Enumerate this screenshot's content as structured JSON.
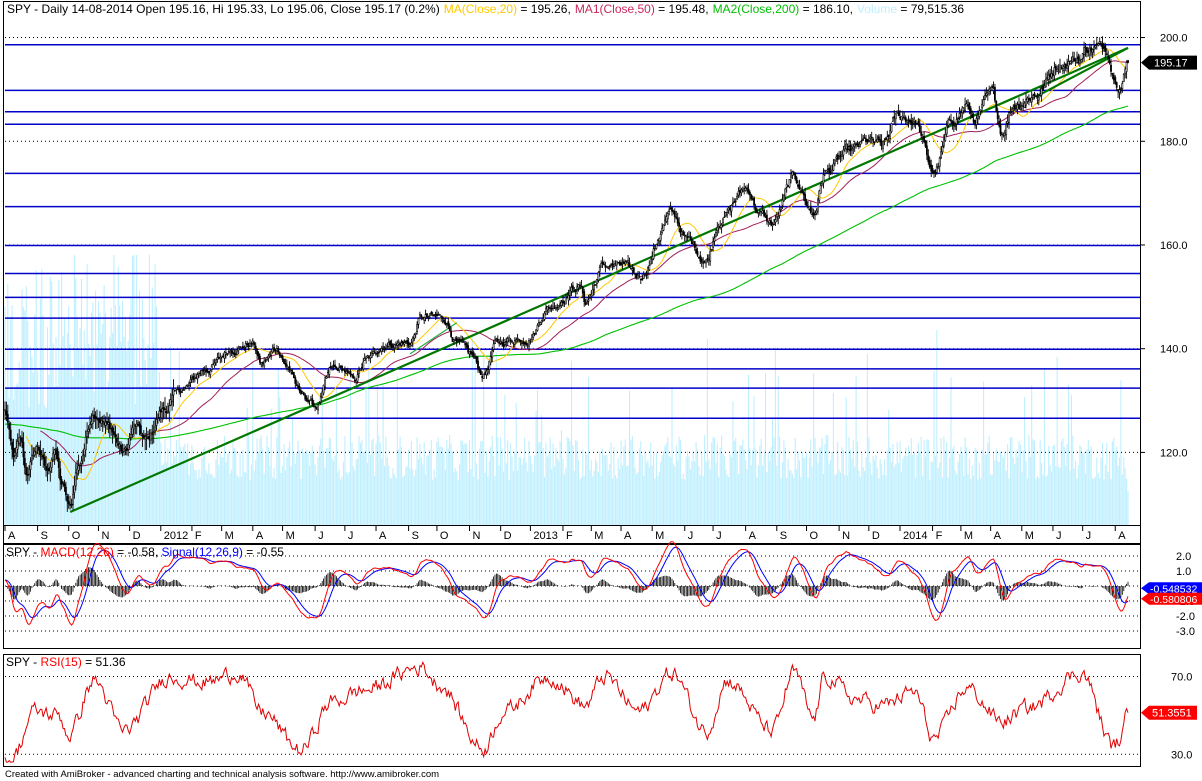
{
  "header": {
    "main_title": "SPY - Daily 14-08-2014 Open 195.16, Hi 195.33, Lo 195.06, Close 195.17 (0.2%)",
    "ma_label": "MA(Close,20)",
    "ma_value": " = 195.26,",
    "ma1_label": "MA1(Close,50)",
    "ma1_value": " = 195.48,",
    "ma2_label": "MA2(Close,200)",
    "ma2_value": " = 186.10,",
    "volume_label": "Volume",
    "volume_value": " = 79,515.36"
  },
  "macd_header": {
    "prefix": "SPY - ",
    "macd_label": "MACD(12,26)",
    "macd_value": " = -0.58, ",
    "signal_label": "Signal(12,26,9)",
    "signal_value": " = -0.55"
  },
  "rsi_header": {
    "prefix": "SPY - ",
    "rsi_label": "RSI(15)",
    "rsi_value": " = 51.36"
  },
  "footer": "Created with AmiBroker - advanced charting and technical analysis software. http://www.amibroker.com",
  "colors": {
    "background": "#ffffff",
    "price": "#000000",
    "ma20": "#ffc800",
    "ma50": "#a0205a",
    "ma200": "#00c000",
    "volume": "#bfefff",
    "hlines": "#0000c8",
    "trend": "#007800",
    "macd": "#ff0000",
    "signal": "#0000ff",
    "rsi": "#e00000",
    "dotted": "#000000"
  },
  "chart_data": [
    {
      "type": "candlestick",
      "panel": "price",
      "ylim": [
        106,
        203
      ],
      "y_ticks": [
        "120.0",
        "140.0",
        "160.0",
        "180.0",
        "200.0"
      ],
      "y_tick_values": [
        120,
        140,
        160,
        180,
        200
      ],
      "x_tick_labels": [
        "A",
        "S",
        "O",
        "N",
        "D",
        "2012",
        "F",
        "M",
        "A",
        "M",
        "J",
        "J",
        "A",
        "S",
        "O",
        "N",
        "D",
        "2013",
        "F",
        "M",
        "A",
        "M",
        "J",
        "J",
        "A",
        "S",
        "O",
        "N",
        "D",
        "2014",
        "F",
        "M",
        "A",
        "M",
        "J",
        "J",
        "A"
      ],
      "last_close_label": "195.17",
      "last_close": 195.17,
      "anchors": {
        "dates": [
          "2011-08-01",
          "2011-08-09",
          "2011-08-16",
          "2011-08-22",
          "2011-09-01",
          "2011-09-12",
          "2011-09-19",
          "2011-09-26",
          "2011-10-04",
          "2011-10-11",
          "2011-10-27",
          "2011-11-10",
          "2011-11-25",
          "2011-12-07",
          "2011-12-19",
          "2012-01-03",
          "2012-01-20",
          "2012-02-15",
          "2012-03-13",
          "2012-04-02",
          "2012-04-10",
          "2012-04-25",
          "2012-05-08",
          "2012-05-18",
          "2012-06-04",
          "2012-06-19",
          "2012-06-28",
          "2012-07-10",
          "2012-07-24",
          "2012-08-10",
          "2012-09-04",
          "2012-09-14",
          "2012-10-05",
          "2012-10-22",
          "2012-11-01",
          "2012-11-15",
          "2012-11-28",
          "2012-12-18",
          "2012-12-31",
          "2013-01-18",
          "2013-02-19",
          "2013-02-25",
          "2013-03-14",
          "2013-04-02",
          "2013-04-18",
          "2013-05-21",
          "2013-06-05",
          "2013-06-24",
          "2013-07-08",
          "2013-08-02",
          "2013-08-15",
          "2013-08-28",
          "2013-09-18",
          "2013-10-08",
          "2013-10-18",
          "2013-11-12",
          "2013-12-02",
          "2013-12-13",
          "2013-12-31",
          "2014-01-15",
          "2014-02-04",
          "2014-02-21",
          "2014-03-07",
          "2014-03-14",
          "2014-04-02",
          "2014-04-11",
          "2014-04-23",
          "2014-05-15",
          "2014-06-09",
          "2014-06-30",
          "2014-07-03",
          "2014-07-24",
          "2014-07-31",
          "2014-08-07",
          "2014-08-14"
        ],
        "close": [
          128,
          119,
          122,
          116,
          121,
          116,
          121,
          114,
          109,
          117,
          128,
          125,
          120,
          125,
          122,
          128,
          132,
          136,
          140,
          141,
          137,
          140,
          136,
          131,
          129,
          136,
          136,
          134,
          138,
          141,
          141,
          146,
          146,
          141,
          139,
          135,
          141,
          142,
          142,
          148,
          152,
          149,
          156,
          156,
          154,
          166,
          161,
          157,
          165,
          171,
          166,
          164,
          173,
          166,
          174,
          178,
          180,
          179,
          185,
          184,
          174,
          184,
          187,
          184,
          189,
          182,
          187,
          189,
          195,
          196,
          198,
          198,
          193,
          191,
          195.17
        ]
      },
      "moving_averages": [
        "MA(Close,20)",
        "MA1(Close,50)",
        "MA2(Close,200)"
      ],
      "horizontal_levels": [
        198.6,
        189.8,
        185.7,
        183.3,
        173.8,
        167.4,
        159.9,
        154.5,
        149.9,
        145.9,
        139.9,
        136.1,
        132.4,
        126.6
      ],
      "trend_lines": [
        {
          "from": [
            "2011-10-04",
            108.5
          ],
          "to": [
            "2014-08-14",
            198
          ]
        },
        {
          "from": [
            "2014-05-15",
            188.6
          ],
          "to": [
            "2014-08-14",
            198
          ]
        },
        {
          "from": [
            "2012-09-04",
            139
          ],
          "to": [
            "2012-10-20",
            145
          ]
        }
      ]
    },
    {
      "type": "bar",
      "panel": "volume",
      "series_name": "Volume",
      "last_value": 79515.36
    },
    {
      "type": "line",
      "panel": "macd",
      "ylim": [
        -4,
        2.6
      ],
      "y_ticks": [
        "2.0",
        "1.0",
        "-1.0",
        "-2.0",
        "-3.0"
      ],
      "y_tick_values": [
        2,
        1,
        -1,
        -2,
        -3
      ],
      "series": [
        {
          "name": "MACD(12,26)",
          "last_value": -0.58
        },
        {
          "name": "Signal(12,26,9)",
          "last_value": -0.55
        }
      ],
      "value_badges": [
        "-0.548532",
        "-0.580806"
      ]
    },
    {
      "type": "line",
      "panel": "rsi",
      "ylim": [
        25,
        80
      ],
      "y_ticks": [
        "70.0",
        "30.0"
      ],
      "y_tick_values": [
        70,
        30
      ],
      "series": [
        {
          "name": "RSI(15)",
          "last_value": 51.36
        }
      ],
      "value_badge": "51.3551",
      "anchors": {
        "dates": [
          "2011-08-08",
          "2011-08-30",
          "2011-09-22",
          "2011-10-03",
          "2011-10-27",
          "2011-11-25",
          "2012-01-10",
          "2012-02-15",
          "2012-03-19",
          "2012-04-10",
          "2012-05-18",
          "2012-06-19",
          "2012-07-20",
          "2012-09-14",
          "2012-10-02",
          "2012-11-15",
          "2012-12-05",
          "2013-01-18",
          "2013-02-25",
          "2013-03-14",
          "2013-04-18",
          "2013-05-21",
          "2013-06-24",
          "2013-07-15",
          "2013-08-28",
          "2013-09-18",
          "2013-10-08",
          "2013-10-18",
          "2013-11-20",
          "2013-12-13",
          "2014-01-15",
          "2014-02-04",
          "2014-03-07",
          "2014-04-11",
          "2014-05-08",
          "2014-06-30",
          "2014-07-31",
          "2014-08-07",
          "2014-08-14"
        ],
        "values": [
          28,
          52,
          50,
          40,
          68,
          42,
          70,
          67,
          72,
          52,
          32,
          57,
          63,
          75,
          66,
          33,
          52,
          70,
          55,
          70,
          52,
          72,
          42,
          68,
          42,
          72,
          48,
          70,
          58,
          55,
          62,
          38,
          64,
          47,
          54,
          72,
          34,
          38,
          51.36
        ]
      }
    }
  ]
}
